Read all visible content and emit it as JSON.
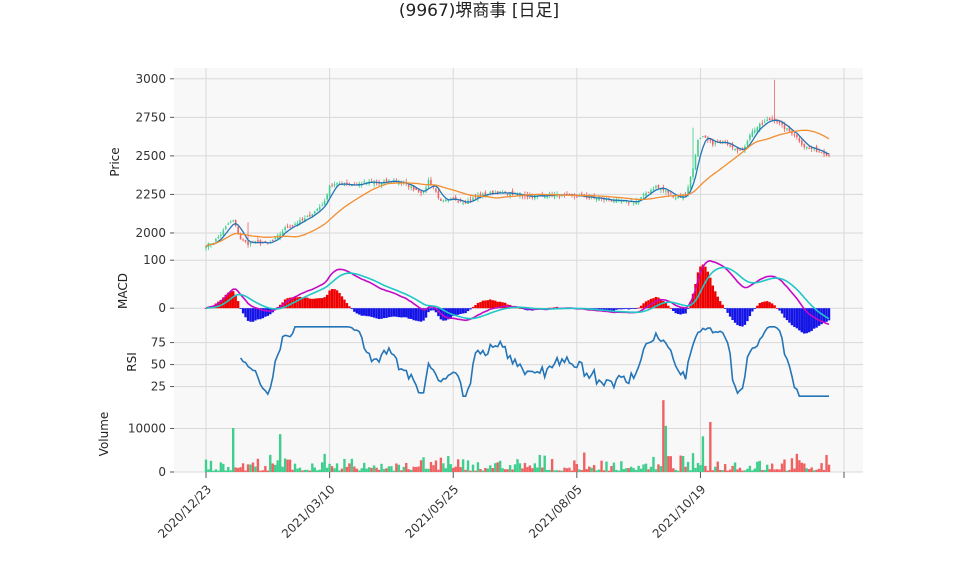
{
  "chart_data": {
    "type": "candlestick",
    "title": "(9967)堺商事 [日足]",
    "x_tick_labels": [
      "2020/12/23",
      "2021/03/10",
      "2021/05/25",
      "2021/08/05",
      "2021/10/19"
    ],
    "panels": {
      "price": {
        "ylabel": "Price",
        "ylim": [
          1870,
          3070
        ],
        "yticks": [
          2000,
          2250,
          2500,
          2750,
          3000
        ],
        "close_anchors": [
          [
            0,
            1920
          ],
          [
            3,
            1940
          ],
          [
            6,
            1990
          ],
          [
            9,
            2060
          ],
          [
            11,
            2080
          ],
          [
            14,
            1960
          ],
          [
            17,
            1930
          ],
          [
            20,
            1940
          ],
          [
            25,
            1930
          ],
          [
            28,
            1960
          ],
          [
            32,
            2030
          ],
          [
            36,
            2060
          ],
          [
            40,
            2090
          ],
          [
            44,
            2140
          ],
          [
            48,
            2200
          ],
          [
            50,
            2310
          ],
          [
            55,
            2320
          ],
          [
            60,
            2310
          ],
          [
            65,
            2330
          ],
          [
            70,
            2320
          ],
          [
            75,
            2340
          ],
          [
            80,
            2320
          ],
          [
            85,
            2280
          ],
          [
            88,
            2260
          ],
          [
            90,
            2340
          ],
          [
            92,
            2300
          ],
          [
            95,
            2200
          ],
          [
            100,
            2220
          ],
          [
            105,
            2200
          ],
          [
            110,
            2240
          ],
          [
            115,
            2260
          ],
          [
            120,
            2260
          ],
          [
            125,
            2250
          ],
          [
            130,
            2240
          ],
          [
            135,
            2240
          ],
          [
            140,
            2250
          ],
          [
            145,
            2240
          ],
          [
            150,
            2240
          ],
          [
            155,
            2230
          ],
          [
            160,
            2220
          ],
          [
            165,
            2210
          ],
          [
            170,
            2200
          ],
          [
            175,
            2210
          ],
          [
            178,
            2260
          ],
          [
            182,
            2300
          ],
          [
            186,
            2270
          ],
          [
            190,
            2230
          ],
          [
            194,
            2240
          ],
          [
            197,
            2420
          ],
          [
            199,
            2600
          ],
          [
            201,
            2620
          ],
          [
            205,
            2580
          ],
          [
            210,
            2590
          ],
          [
            213,
            2560
          ],
          [
            217,
            2530
          ],
          [
            220,
            2640
          ],
          [
            224,
            2700
          ],
          [
            227,
            2730
          ],
          [
            230,
            2740
          ],
          [
            234,
            2680
          ],
          [
            238,
            2640
          ],
          [
            242,
            2560
          ],
          [
            246,
            2540
          ],
          [
            250,
            2520
          ],
          [
            252,
            2500
          ]
        ],
        "volume_spikes": {
          "11": 10100,
          "30": 8700,
          "95": 3300,
          "185": 16500,
          "186": 10600,
          "204": 11500,
          "201": 8200
        }
      },
      "macd": {
        "ylabel": "MACD",
        "ylim": [
          -35,
          115
        ],
        "yticks": [
          0,
          100
        ]
      },
      "rsi": {
        "ylabel": "RSI",
        "ylim": [
          12,
          95
        ],
        "yticks": [
          25,
          50,
          75
        ]
      },
      "volume": {
        "ylabel": "Volume",
        "ylim": [
          0,
          17000
        ],
        "yticks": [
          0,
          10000
        ]
      }
    },
    "series": [
      {
        "name": "",
        "kind": "close",
        "color": "#2475b7"
      },
      {
        "name": "",
        "kind": "ma_long",
        "color": "#f28d30"
      },
      {
        "name": "",
        "kind": "macd",
        "color": "#c40ac4"
      },
      {
        "name": "",
        "kind": "signal",
        "color": "#1fc7c7"
      }
    ],
    "colors": {
      "up": "#3ecf8e",
      "down": "#f06262",
      "hist_pos": "#ee0000",
      "hist_neg": "#1414e6",
      "grid": "#d9d9d9",
      "panel_bg": "#f8f8f8"
    },
    "grid": true
  }
}
